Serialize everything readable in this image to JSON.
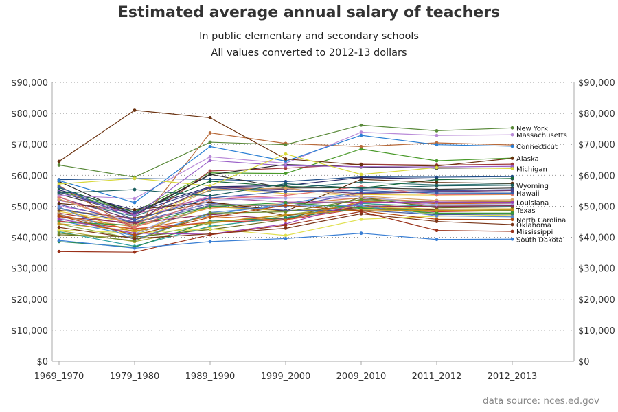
{
  "chart_data": {
    "type": "line",
    "title": "Estimated average annual salary of teachers",
    "subtitle": [
      "In public elementary and secondary schools",
      "All values converted to 2012-13 dollars"
    ],
    "x": [
      "1969_1970",
      "1979_1980",
      "1989_1990",
      "1999_2000",
      "2009_2010",
      "2011_2012",
      "2012_2013"
    ],
    "ylim": [
      0,
      90000
    ],
    "yticks": [
      0,
      10000,
      20000,
      30000,
      40000,
      50000,
      60000,
      70000,
      80000,
      90000
    ],
    "ytick_labels": [
      "$0",
      "$10,000",
      "$20,000",
      "$30,000",
      "$40,000",
      "$50,000",
      "$60,000",
      "$70,000",
      "$80,000",
      "$90,000"
    ],
    "grid": "horizontal dotted",
    "y_axis_both_sides": true,
    "source": "data source: nces.ed.gov",
    "series": [
      {
        "name": "New York",
        "color": "#5a8a3a",
        "values": [
          63300,
          59400,
          70700,
          69900,
          76200,
          74400,
          75300
        ]
      },
      {
        "name": "Massachusetts",
        "color": "#b98ad8",
        "values": [
          53600,
          52500,
          66000,
          63900,
          73900,
          72900,
          73100
        ]
      },
      {
        "name": "Connecticut",
        "color": "#2a7fd4",
        "values": [
          58300,
          51200,
          69300,
          64600,
          72900,
          69900,
          69400
        ]
      },
      {
        "name": "Alaska",
        "color": "#6b3210",
        "values": [
          64500,
          81000,
          78600,
          65300,
          63400,
          63000,
          65500
        ]
      },
      {
        "name": "Michigan",
        "color": "#d8d83a",
        "values": [
          57200,
          59000,
          56600,
          66900,
          60300,
          62500,
          62200
        ]
      },
      {
        "name": "Wyoming",
        "color": "#1b5e5e",
        "values": [
          54300,
          55400,
          53400,
          57300,
          55800,
          56600,
          56800
        ]
      },
      {
        "name": "Hawaii",
        "color": "#3a5fa8",
        "values": [
          56300,
          45600,
          52700,
          54800,
          55100,
          54300,
          54300
        ]
      },
      {
        "name": "Louisiana",
        "color": "#9a40b0",
        "values": [
          45900,
          41300,
          41000,
          44300,
          51200,
          51400,
          51300
        ]
      },
      {
        "name": "Texas",
        "color": "#c89018",
        "values": [
          44400,
          42100,
          44700,
          47300,
          48800,
          48600,
          48800
        ]
      },
      {
        "name": "North Carolina",
        "color": "#b04a10",
        "values": [
          46900,
          40700,
          46400,
          50300,
          48500,
          45800,
          45700
        ]
      },
      {
        "name": "Oklahoma",
        "color": "#7a3518",
        "values": [
          43200,
          39600,
          41100,
          42900,
          47600,
          45100,
          44100
        ]
      },
      {
        "name": "Mississippi",
        "color": "#9a3018",
        "values": [
          35400,
          35200,
          40800,
          43900,
          48300,
          42200,
          41900
        ]
      },
      {
        "name": "South Dakota",
        "color": "#3a7fd4",
        "values": [
          39000,
          36500,
          38600,
          39600,
          41300,
          39300,
          39400
        ]
      },
      {
        "color": "#1f4e8a",
        "values": [
          58600,
          59000,
          58700,
          58000,
          59500,
          59400,
          59600
        ]
      },
      {
        "color": "#4a9a2a",
        "values": [
          54900,
          48200,
          60800,
          60600,
          68500,
          64700,
          65600
        ]
      },
      {
        "color": "#2a2a6a",
        "values": [
          55300,
          48800,
          56300,
          56700,
          59300,
          58800,
          58900
        ]
      },
      {
        "color": "#a03a3a",
        "values": [
          47800,
          44000,
          61400,
          62300,
          63600,
          63300,
          63600
        ]
      },
      {
        "color": "#3a7a7a",
        "values": [
          52100,
          46800,
          55100,
          55800,
          57800,
          56900,
          57300
        ]
      },
      {
        "color": "#c87ad8",
        "values": [
          50100,
          45600,
          53400,
          52700,
          52500,
          50200,
          50300
        ]
      },
      {
        "color": "#e8c838",
        "values": [
          48300,
          44700,
          56000,
          54100,
          53800,
          53600,
          53800
        ]
      },
      {
        "color": "#d88a48",
        "values": [
          46600,
          43400,
          49400,
          50800,
          52700,
          51400,
          51600
        ]
      },
      {
        "color": "#5a5ab0",
        "values": [
          50600,
          44900,
          50900,
          49900,
          54300,
          54900,
          55100
        ]
      },
      {
        "color": "#3a3a3a",
        "values": [
          53900,
          47500,
          60300,
          55900,
          56000,
          55500,
          55900
        ]
      },
      {
        "color": "#8ab04a",
        "values": [
          44300,
          39500,
          44500,
          47200,
          50500,
          47300,
          47600
        ]
      },
      {
        "color": "#3a8ad8",
        "values": [
          45400,
          40500,
          47200,
          50900,
          54600,
          54300,
          54200
        ]
      },
      {
        "color": "#b0a838",
        "values": [
          42100,
          38600,
          43300,
          46900,
          51100,
          48700,
          48900
        ]
      },
      {
        "color": "#7a4a20",
        "values": [
          48700,
          46200,
          51500,
          47000,
          49700,
          48800,
          48500
        ]
      },
      {
        "color": "#a84a9a",
        "values": [
          51900,
          47600,
          52800,
          51400,
          51300,
          50900,
          51100
        ]
      },
      {
        "color": "#1a6a3a",
        "values": [
          56000,
          48100,
          58100,
          56400,
          55900,
          58600,
          59000
        ]
      },
      {
        "color": "#d0b028",
        "values": [
          49500,
          41600,
          49900,
          48500,
          49700,
          49100,
          49200
        ]
      },
      {
        "color": "#5a2a0a",
        "values": [
          50900,
          48900,
          51400,
          48400,
          58700,
          57700,
          57400
        ]
      },
      {
        "color": "#909090",
        "values": [
          47500,
          40700,
          50600,
          50200,
          52000,
          50100,
          50300
        ]
      },
      {
        "color": "#c83838",
        "values": [
          45200,
          42800,
          44800,
          45600,
          49300,
          48200,
          48600
        ]
      },
      {
        "color": "#2aa0a0",
        "values": [
          41800,
          37100,
          43600,
          46300,
          50900,
          49900,
          50000
        ]
      },
      {
        "color": "#6a6a20",
        "values": [
          40800,
          40100,
          42500,
          45700,
          52900,
          49500,
          49800
        ]
      },
      {
        "color": "#e0e050",
        "values": [
          42300,
          41400,
          42700,
          40600,
          45800,
          46800,
          47200
        ]
      },
      {
        "color": "#4a5a9a",
        "values": [
          49300,
          44700,
          50200,
          48700,
          48700,
          47300,
          47500
        ]
      },
      {
        "color": "#8a2a5a",
        "values": [
          46700,
          44500,
          47400,
          45800,
          50100,
          49900,
          50200
        ]
      },
      {
        "color": "#2a8a5a",
        "values": [
          38600,
          36800,
          45200,
          46200,
          49400,
          48500,
          48600
        ]
      },
      {
        "color": "#d06a20",
        "values": [
          47200,
          42400,
          46700,
          45500,
          51600,
          50800,
          51000
        ]
      },
      {
        "color": "#5a8ad0",
        "values": [
          49800,
          39200,
          48000,
          50100,
          50200,
          46900,
          46600
        ]
      },
      {
        "color": "#a8a8e0",
        "values": [
          46200,
          41100,
          52000,
          52600,
          53200,
          50500,
          50800
        ]
      },
      {
        "color": "#703a70",
        "values": [
          52900,
          45500,
          56200,
          55500,
          54100,
          54700,
          55100
        ]
      },
      {
        "color": "#389838",
        "values": [
          44900,
          43900,
          49900,
          51200,
          49500,
          47800,
          47800
        ]
      },
      {
        "color": "#b86a3a",
        "values": [
          56700,
          42600,
          73700,
          70300,
          69300,
          70500,
          69800
        ]
      },
      {
        "color": "#6a8a2a",
        "values": [
          41300,
          38900,
          47800,
          48200,
          52200,
          51300,
          51400
        ]
      },
      {
        "color": "#2a2a2a",
        "values": [
          58000,
          47100,
          60200,
          63500,
          62700,
          62300,
          62400
        ]
      },
      {
        "color": "#9a60c8",
        "values": [
          54700,
          47000,
          64800,
          63100,
          62800,
          62700,
          62900
        ]
      },
      {
        "color": "#d8a060",
        "values": [
          52400,
          43800,
          55400,
          55900,
          53300,
          51900,
          52100
        ]
      },
      {
        "color": "#404890",
        "values": [
          54500,
          47900,
          56000,
          54700,
          55400,
          55100,
          55400
        ]
      },
      {
        "color": "#e07070",
        "values": [
          53200,
          43200,
          52400,
          53500,
          56400,
          53700,
          53900
        ]
      }
    ]
  }
}
